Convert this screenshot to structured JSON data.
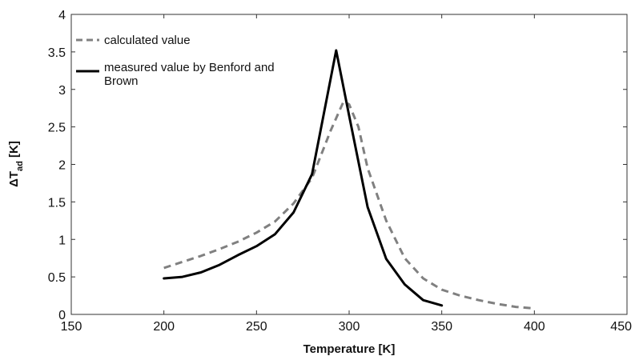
{
  "chart_data": {
    "type": "line",
    "xlabel": "Temperature [K]",
    "ylabel": {
      "prefix": "ΔT",
      "subscript": "ad",
      "suffix": " [K]"
    },
    "xlim": [
      150,
      450
    ],
    "ylim": [
      0,
      4
    ],
    "xticks": [
      150,
      200,
      250,
      300,
      350,
      400,
      450
    ],
    "yticks": [
      0,
      0.5,
      1,
      1.5,
      2,
      2.5,
      3,
      3.5,
      4
    ],
    "grid": false,
    "legend_position": "top-left",
    "series": [
      {
        "name": "calculated value",
        "style": "dashed",
        "color": "#808080",
        "points": [
          [
            200,
            0.62
          ],
          [
            210,
            0.7
          ],
          [
            220,
            0.78
          ],
          [
            230,
            0.87
          ],
          [
            240,
            0.97
          ],
          [
            250,
            1.09
          ],
          [
            260,
            1.24
          ],
          [
            270,
            1.48
          ],
          [
            280,
            1.82
          ],
          [
            290,
            2.45
          ],
          [
            297,
            2.84
          ],
          [
            300,
            2.8
          ],
          [
            305,
            2.5
          ],
          [
            310,
            1.95
          ],
          [
            320,
            1.25
          ],
          [
            330,
            0.75
          ],
          [
            340,
            0.48
          ],
          [
            350,
            0.33
          ],
          [
            360,
            0.25
          ],
          [
            370,
            0.19
          ],
          [
            380,
            0.14
          ],
          [
            390,
            0.1
          ],
          [
            400,
            0.08
          ]
        ]
      },
      {
        "name": "measured value by Benford and Brown",
        "style": "solid",
        "color": "#000000",
        "points": [
          [
            200,
            0.48
          ],
          [
            210,
            0.5
          ],
          [
            220,
            0.56
          ],
          [
            230,
            0.66
          ],
          [
            240,
            0.79
          ],
          [
            250,
            0.91
          ],
          [
            260,
            1.07
          ],
          [
            270,
            1.36
          ],
          [
            280,
            1.87
          ],
          [
            293,
            3.52
          ],
          [
            300,
            2.65
          ],
          [
            310,
            1.43
          ],
          [
            320,
            0.74
          ],
          [
            330,
            0.4
          ],
          [
            340,
            0.19
          ],
          [
            350,
            0.12
          ]
        ]
      }
    ]
  }
}
